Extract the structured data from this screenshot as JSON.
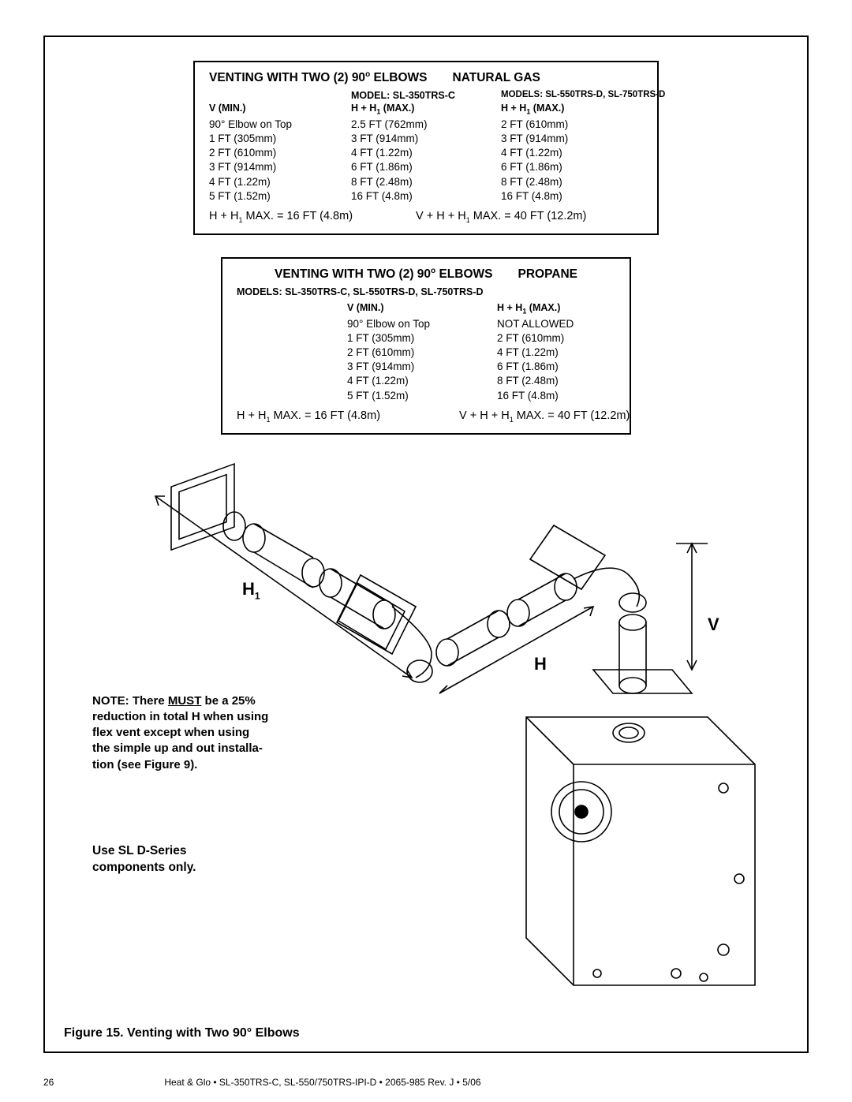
{
  "table1": {
    "title_left": "VENTING WITH TWO (2) 90",
    "title_deg": "o",
    "title_mid": " ELBOWS",
    "title_right": "NATURAL GAS",
    "model_left": "MODEL: SL-350TRS-C",
    "model_right": "MODELS: SL-550TRS-D, SL-750TRS-D",
    "h_vmin": "V  (MIN.)",
    "h_c2": "H + H",
    "h_c2b": " (MAX.)",
    "h_c3": "H + H",
    "h_c3b": "  (MAX.)",
    "rows": [
      [
        "90° Elbow on Top",
        "2.5 FT (762mm)",
        "2 FT (610mm)"
      ],
      [
        "1 FT (305mm)",
        "3 FT (914mm)",
        "3 FT (914mm)"
      ],
      [
        "2 FT (610mm)",
        "4 FT (1.22m)",
        "4 FT (1.22m)"
      ],
      [
        "3 FT (914mm)",
        "6 FT (1.86m)",
        "6 FT (1.86m)"
      ],
      [
        "4 FT (1.22m)",
        "8 FT (2.48m)",
        "8 FT (2.48m)"
      ],
      [
        "5 FT (1.52m)",
        "16 FT (4.8m)",
        "16 FT (4.8m)"
      ]
    ],
    "foot_left_a": "H + H",
    "foot_left_b": "  MAX. = 16 FT (4.8m)",
    "foot_right_a": "V + H + H",
    "foot_right_b": "  MAX. = 40 FT (12.2m)"
  },
  "table2": {
    "title_left": "VENTING WITH TWO (2) 90",
    "title_deg": "o",
    "title_mid": " ELBOWS",
    "title_right": "PROPANE",
    "models": "MODELS:  SL-350TRS-C, SL-550TRS-D, SL-750TRS-D",
    "h_vmin": "V  (MIN.)",
    "h_c2": "H + H",
    "h_c2b": " (MAX.)",
    "rows": [
      [
        "90° Elbow on Top",
        "NOT ALLOWED"
      ],
      [
        "1 FT (305mm)",
        "2 FT (610mm)"
      ],
      [
        "2 FT (610mm)",
        "4 FT (1.22m)"
      ],
      [
        "3 FT (914mm)",
        "6 FT (1.86m)"
      ],
      [
        "4 FT (1.22m)",
        "8 FT (2.48m)"
      ],
      [
        "5 FT (1.52m)",
        "16 FT (4.8m)"
      ]
    ],
    "foot_left_a": "H + H",
    "foot_left_b": "  MAX. = 16 FT (4.8m)",
    "foot_right_a": "V + H + H",
    "foot_right_b": "   MAX. = 40 FT (12.2m)"
  },
  "note": {
    "l1a": "NOTE: There ",
    "l1u": "MUST",
    "l1b": " be a 25%",
    "l2": "reduction in total H when using",
    "l3": "flex vent except when using",
    "l4": "the simple up and out installa-",
    "l5": "tion (see Figure 9)."
  },
  "use": {
    "l1": "Use SL D-Series",
    "l2": "components only."
  },
  "labels": {
    "H1": "H",
    "H1s": "1",
    "V": "V",
    "H": "H"
  },
  "figcap": "Figure 15.   Venting with Two 90° Elbows",
  "footer": {
    "page": "26",
    "text": "Heat & Glo  •  SL-350TRS-C, SL-550/750TRS-IPI-D  •  2065-985  Rev. J  •  5/06"
  },
  "colors": {
    "stroke": "#000000",
    "bg": "#ffffff"
  }
}
